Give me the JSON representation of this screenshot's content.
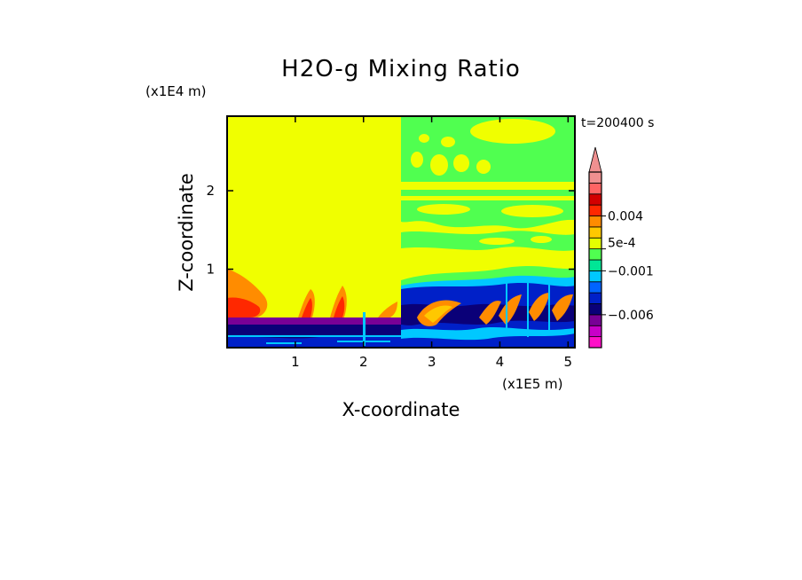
{
  "chart_data": {
    "type": "heatmap",
    "title": "H2O-g Mixing Ratio",
    "xlabel": "X-coordinate",
    "ylabel": "Z-coordinate",
    "x_scale_label": "(x1E5 m)",
    "y_scale_label": "(x1E4 m)",
    "time_label": "t=200400 s",
    "x_ticks": [
      "1",
      "2",
      "3",
      "4",
      "5"
    ],
    "x_tick_values": [
      1,
      2,
      3,
      4,
      5
    ],
    "y_ticks": [
      "1",
      "2"
    ],
    "y_tick_values": [
      1,
      2
    ],
    "xlim": [
      0,
      5.1
    ],
    "ylim": [
      0,
      2.95
    ],
    "colorbar": {
      "labels": [
        "0.004",
        "5e-4",
        "−0.001",
        "−0.006"
      ],
      "label_values": [
        0.004,
        0.0005,
        -0.001,
        -0.006
      ],
      "level_colors": [
        "#ff10c8",
        "#c800c8",
        "#780096",
        "#0a0078",
        "#0020c8",
        "#0064ff",
        "#00c8ff",
        "#00e696",
        "#50ff50",
        "#e6ff00",
        "#ffc800",
        "#ff8c00",
        "#ff2800",
        "#d20000",
        "#ff6464",
        "#f09090"
      ],
      "extend_max": true
    },
    "regions": [
      {
        "name": "background",
        "color": "#f0ff00"
      },
      {
        "name": "right upper band",
        "color": "#50ff50"
      },
      {
        "name": "lower boundary layer",
        "color": "#0020c8"
      },
      {
        "name": "positive anomaly plumes",
        "color": "#ff8c00"
      },
      {
        "name": "negative anomaly band",
        "color": "#780096"
      }
    ]
  },
  "colors": {
    "yellow": "#f0ff00",
    "green": "#50ff50",
    "cyan": "#00c8ff",
    "blue": "#0020c8",
    "darkblue": "#0a0078",
    "orange": "#ff8c00",
    "red": "#ff2800",
    "purple": "#780096"
  }
}
